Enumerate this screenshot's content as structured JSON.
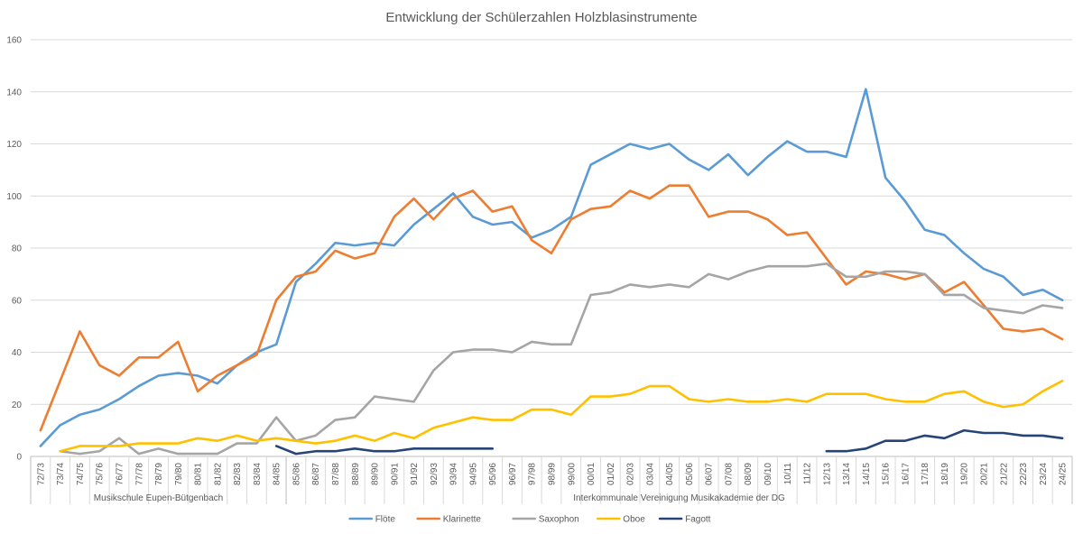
{
  "chart_data": {
    "type": "line",
    "title": "Entwicklung der Schülerzahlen Holzblasinstrumente",
    "xlabel": "",
    "ylabel": "",
    "ylim": [
      0,
      160
    ],
    "yticks": [
      0,
      20,
      40,
      60,
      80,
      100,
      120,
      140,
      160
    ],
    "grid": true,
    "legend": "bottom",
    "categories": [
      "72/73",
      "73/74",
      "74/75",
      "75/76",
      "76/77",
      "77/78",
      "78/79",
      "79/80",
      "80/81",
      "81/82",
      "82/83",
      "83/84",
      "84/85",
      "85/86",
      "86/87",
      "87/88",
      "88/89",
      "89/90",
      "90/91",
      "91/92",
      "92/93",
      "93/94",
      "94/95",
      "95/96",
      "96/97",
      "97/98",
      "98/99",
      "99/00",
      "00/01",
      "01/02",
      "02/03",
      "03/04",
      "04/05",
      "05/06",
      "06/07",
      "07/08",
      "08/09",
      "09/10",
      "10/11",
      "11/12",
      "12/13",
      "13/14",
      "14/15",
      "15/16",
      "16/17",
      "17/18",
      "18/19",
      "19/20",
      "20/21",
      "21/22",
      "22/23",
      "23/24",
      "24/25"
    ],
    "groups": [
      {
        "label": "Musikschule Eupen-Bütgenbach",
        "start": 0,
        "end": 12
      },
      {
        "label": "Interkommunale Vereinigung Musikakademie der DG",
        "start": 13,
        "end": 52
      }
    ],
    "series": [
      {
        "name": "Flöte",
        "color": "#5B9BD5",
        "values": [
          4,
          12,
          16,
          18,
          22,
          27,
          31,
          32,
          31,
          28,
          35,
          40,
          43,
          67,
          74,
          82,
          81,
          82,
          81,
          89,
          95,
          101,
          92,
          89,
          90,
          84,
          87,
          92,
          112,
          116,
          120,
          118,
          120,
          114,
          110,
          116,
          108,
          115,
          121,
          117,
          117,
          115,
          141,
          107,
          98,
          87,
          85,
          78,
          72,
          69,
          62,
          64,
          60
        ]
      },
      {
        "name": "Klarinette",
        "color": "#ED7D31",
        "values": [
          10,
          29,
          48,
          35,
          31,
          38,
          38,
          44,
          25,
          31,
          35,
          39,
          60,
          69,
          71,
          79,
          76,
          78,
          92,
          99,
          91,
          99,
          102,
          94,
          96,
          83,
          78,
          91,
          95,
          96,
          102,
          99,
          104,
          104,
          92,
          94,
          94,
          91,
          85,
          86,
          76,
          66,
          71,
          70,
          68,
          70,
          63,
          67,
          58,
          49,
          48,
          49,
          45
        ]
      },
      {
        "name": "Saxophon",
        "color": "#A5A5A5",
        "values": [
          null,
          2,
          1,
          2,
          7,
          1,
          3,
          1,
          1,
          1,
          5,
          5,
          15,
          6,
          8,
          14,
          15,
          23,
          22,
          21,
          33,
          40,
          41,
          41,
          40,
          44,
          43,
          43,
          62,
          63,
          66,
          65,
          66,
          65,
          70,
          68,
          71,
          73,
          73,
          73,
          74,
          69,
          69,
          71,
          71,
          70,
          62,
          62,
          57,
          56,
          55,
          58,
          57
        ]
      },
      {
        "name": "Oboe",
        "color": "#FFC000",
        "values": [
          null,
          2,
          4,
          4,
          4,
          5,
          5,
          5,
          7,
          6,
          8,
          6,
          7,
          6,
          5,
          6,
          8,
          6,
          9,
          7,
          11,
          13,
          15,
          14,
          14,
          18,
          18,
          16,
          23,
          23,
          24,
          27,
          27,
          22,
          21,
          22,
          21,
          21,
          22,
          21,
          24,
          24,
          24,
          22,
          21,
          21,
          24,
          25,
          21,
          19,
          20,
          25,
          29
        ]
      },
      {
        "name": "Fagott",
        "color": "#264478",
        "values": [
          null,
          null,
          null,
          null,
          null,
          null,
          null,
          null,
          null,
          null,
          null,
          null,
          4,
          1,
          2,
          2,
          3,
          2,
          2,
          3,
          3,
          3,
          3,
          3,
          null,
          null,
          null,
          null,
          null,
          null,
          null,
          null,
          null,
          null,
          null,
          null,
          null,
          null,
          null,
          null,
          2,
          2,
          3,
          6,
          6,
          8,
          7,
          10,
          9,
          9,
          8,
          8,
          7
        ]
      }
    ]
  }
}
